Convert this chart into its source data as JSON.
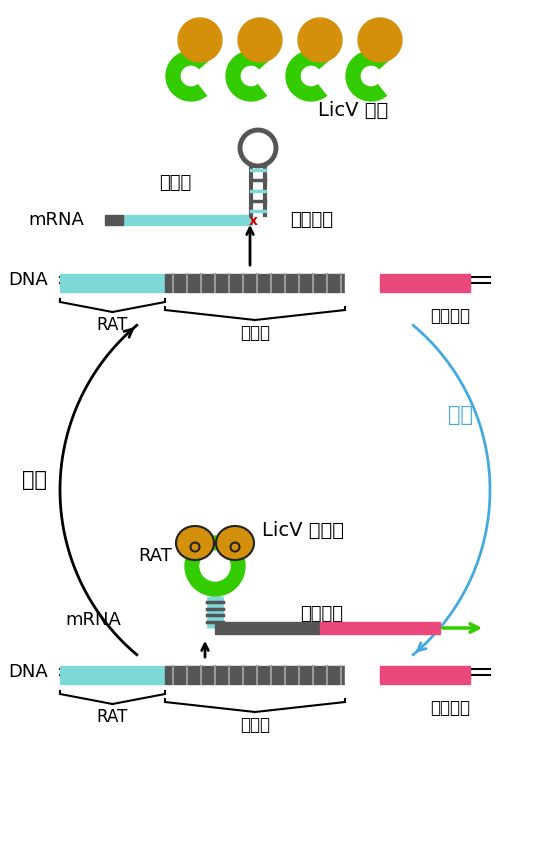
{
  "bg_color": "#ffffff",
  "cyan": "#7dd8d8",
  "dark_gray": "#555555",
  "pink": "#e8487a",
  "green_bright": "#33cc00",
  "gold": "#d4900a",
  "red": "#cc0000",
  "blue_light": "#44aadd",
  "label_licv_monomer": "LicV 单体",
  "label_licv_dimer": "LicV 二聚体",
  "label_terminator_top": "终止子",
  "label_mrna_top": "mRNA",
  "label_transcription_stop": "转录终止",
  "label_dna_top": "DNA",
  "label_rat_top": "RAT",
  "label_terminator_brace_top": "终止子",
  "label_reporter_gene_top": "报告基因",
  "label_dark": "黑暗",
  "label_blue_light": "蓝光",
  "label_rat_bottom_dimer": "RAT",
  "label_mrna_bottom": "mRNA",
  "label_dna_bottom": "DNA",
  "label_transcription_elongation": "转录延长",
  "label_terminator_brace_bottom": "终止子",
  "label_reporter_gene_bottom": "报告基因",
  "label_rat_bottom": "RAT"
}
